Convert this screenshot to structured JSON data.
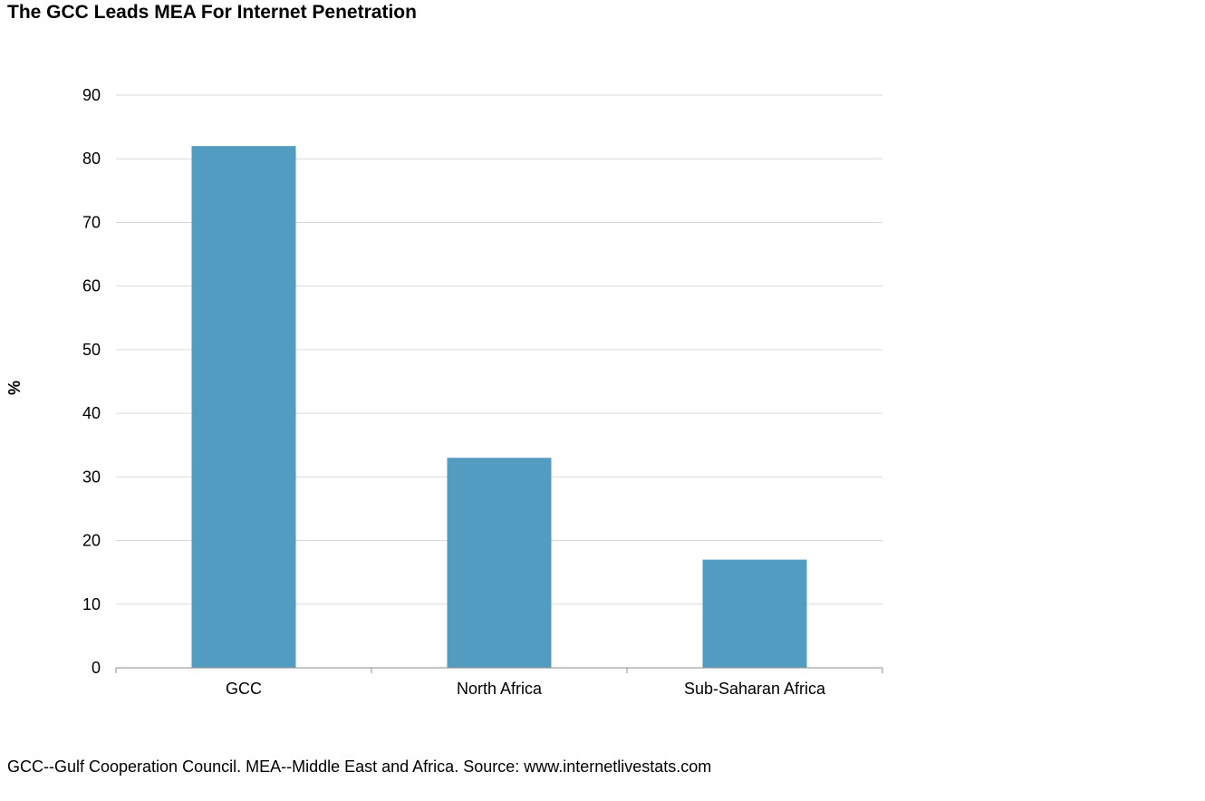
{
  "chart_data": {
    "type": "bar",
    "title": "The GCC Leads MEA For Internet Penetration",
    "ylabel": "%",
    "xlabel": "",
    "categories": [
      "GCC",
      "North Africa",
      "Sub-Saharan Africa"
    ],
    "values": [
      82,
      33,
      17
    ],
    "ylim": [
      0,
      90
    ],
    "yticks": [
      0,
      10,
      20,
      30,
      40,
      50,
      60,
      70,
      80,
      90
    ],
    "grid": true,
    "legend": "none",
    "bar_color": "#529cc2"
  },
  "footnote": "GCC--Gulf Cooperation Council. MEA--Middle East and Africa. Source: www.internetlivestats.com"
}
